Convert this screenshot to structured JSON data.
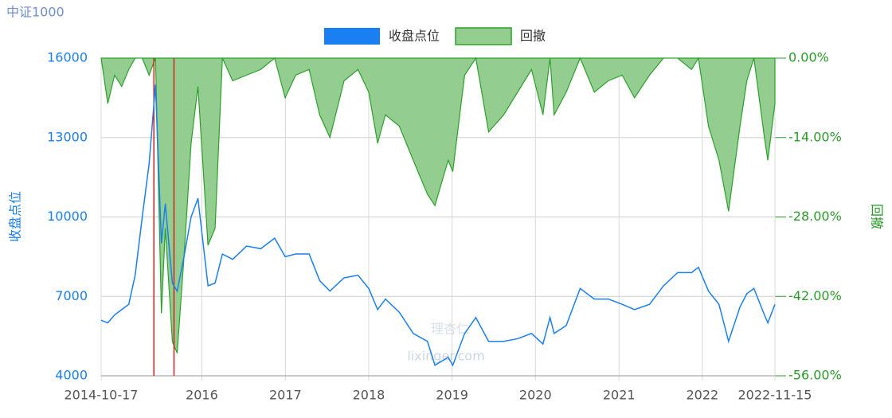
{
  "chart_data": {
    "type": "line",
    "title": "中证1000",
    "legend": "top-center",
    "grid": true,
    "y_label": "收盘点位",
    "y2_label": "回撤",
    "watermark": {
      "text": "理杏仁",
      "url": "lixinger.com"
    },
    "xlim": [
      "2014-10-17",
      "2022-11-15"
    ],
    "xticks": [
      "2014-10-17",
      {
        "value": "2016-01-01",
        "label": "2016"
      },
      {
        "value": "2017-01-01",
        "label": "2017"
      },
      {
        "value": "2018-01-01",
        "label": "2018"
      },
      {
        "value": "2019-01-01",
        "label": "2019"
      },
      {
        "value": "2020-01-01",
        "label": "2020"
      },
      {
        "value": "2021-01-01",
        "label": "2021"
      },
      {
        "value": "2022-01-01",
        "label": "2022"
      },
      "2022-11-15"
    ],
    "ylim": [
      4000,
      16000
    ],
    "yticks": [
      4000,
      7000,
      10000,
      13000,
      16000
    ],
    "y2lim": [
      -56,
      0
    ],
    "y2ticks": [
      {
        "value": -56,
        "label": "-56.00%"
      },
      {
        "value": -42,
        "label": "-42.00%"
      },
      {
        "value": -28,
        "label": "-28.00%"
      },
      {
        "value": -14,
        "label": "-14.00%"
      },
      {
        "value": 0,
        "label": "0.00%"
      }
    ],
    "vlines": {
      "color": "#d62020",
      "x": [
        "2015-06-05",
        "2015-09-01"
      ]
    },
    "x": [
      "2014-10-17",
      "2014-11-15",
      "2014-12-15",
      "2015-01-15",
      "2015-02-15",
      "2015-03-15",
      "2015-04-15",
      "2015-05-15",
      "2015-06-12",
      "2015-07-08",
      "2015-07-25",
      "2015-08-25",
      "2015-09-15",
      "2015-10-15",
      "2015-11-15",
      "2015-12-15",
      "2016-01-28",
      "2016-02-28",
      "2016-03-31",
      "2016-05-15",
      "2016-07-15",
      "2016-09-15",
      "2016-11-15",
      "2016-12-31",
      "2017-02-15",
      "2017-04-15",
      "2017-05-31",
      "2017-07-15",
      "2017-09-15",
      "2017-11-15",
      "2018-01-01",
      "2018-02-09",
      "2018-03-15",
      "2018-05-15",
      "2018-07-15",
      "2018-09-15",
      "2018-10-18",
      "2018-12-15",
      "2019-01-04",
      "2019-02-25",
      "2019-04-15",
      "2019-06-10",
      "2019-08-15",
      "2019-10-15",
      "2019-12-15",
      "2020-02-03",
      "2020-03-05",
      "2020-03-23",
      "2020-05-15",
      "2020-07-15",
      "2020-09-15",
      "2020-11-15",
      "2021-01-15",
      "2021-03-10",
      "2021-05-15",
      "2021-07-15",
      "2021-09-15",
      "2021-11-15",
      "2021-12-15",
      "2022-01-28",
      "2022-03-15",
      "2022-04-26",
      "2022-06-15",
      "2022-07-15",
      "2022-08-15",
      "2022-09-30",
      "2022-10-15",
      "2022-11-15"
    ],
    "series": [
      {
        "name": "收盘点位",
        "type": "line",
        "color": "#1a7ff0",
        "values": [
          6100,
          6000,
          6300,
          6500,
          6700,
          7800,
          10000,
          12000,
          15000,
          9000,
          10500,
          7500,
          7200,
          8500,
          10000,
          10700,
          7400,
          7500,
          8600,
          8400,
          8900,
          8800,
          9200,
          8500,
          8600,
          8600,
          7600,
          7200,
          7700,
          7800,
          7300,
          6500,
          6900,
          6400,
          5600,
          5300,
          4400,
          4700,
          4400,
          5600,
          6200,
          5300,
          5300,
          5400,
          5600,
          5200,
          6200,
          5600,
          5900,
          7300,
          6900,
          6900,
          6700,
          6500,
          6700,
          7400,
          7900,
          7900,
          8100,
          7200,
          6700,
          5300,
          6600,
          7100,
          7300,
          6300,
          6000,
          6700
        ]
      },
      {
        "name": "回撤",
        "type": "area",
        "axis": "y2",
        "color": "#2ca02c",
        "fill": "#93cd8f",
        "values": [
          0,
          -8,
          -3,
          -5,
          -2,
          0,
          0,
          -3,
          0,
          -45,
          -30,
          -50,
          -52,
          -35,
          -15,
          -5,
          -33,
          -30,
          0,
          -4,
          -3,
          -2,
          0,
          -7,
          -3,
          -2,
          -10,
          -14,
          -4,
          -2,
          -6,
          -15,
          -10,
          -12,
          -18,
          -24,
          -26,
          -18,
          -20,
          -3,
          0,
          -13,
          -10,
          -6,
          -2,
          -10,
          0,
          -10,
          -6,
          0,
          -6,
          -4,
          -3,
          -7,
          -3,
          0,
          0,
          -2,
          0,
          -12,
          -18,
          -27,
          -12,
          -4,
          0,
          -14,
          -18,
          -8
        ]
      }
    ]
  }
}
